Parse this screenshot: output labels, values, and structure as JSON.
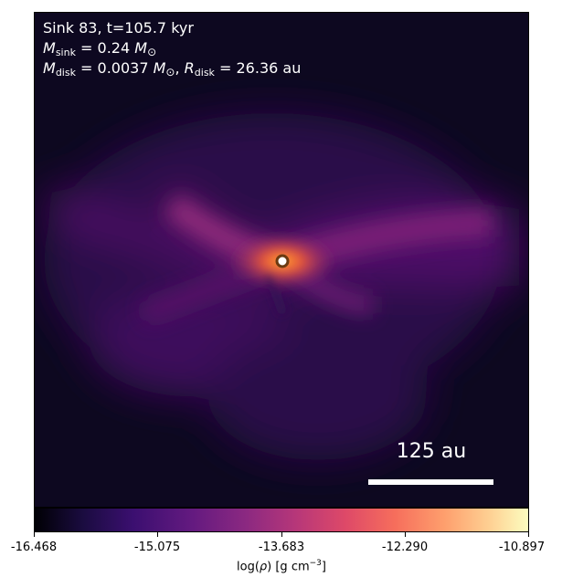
{
  "annotations": {
    "sink_title": "Sink 83, t=105.7 kyr",
    "sink_mass_symbol": "M",
    "sink_mass_sub": "sink",
    "sink_mass_value": " = 0.24 ",
    "sink_mass_unit": "M",
    "sun_symbol": "⊙",
    "disk_mass_symbol": "M",
    "disk_mass_sub": "disk",
    "disk_mass_value": " = 0.0037 ",
    "disk_mass_unit": "M",
    "disk_radius_symbol": "R",
    "disk_radius_sub": "disk",
    "disk_radius_value": " = 26.36 au",
    "separator": ", "
  },
  "scalebar": {
    "label": "125 au"
  },
  "colorbar": {
    "ticks": [
      "-16.468",
      "-15.075",
      "-13.683",
      "-12.290",
      "-10.897"
    ],
    "label_prefix": "log(",
    "label_rho": "ρ",
    "label_mid": ") [g cm",
    "label_exp": "−3",
    "label_suffix": "]",
    "colormap": "inferno"
  },
  "colors": {
    "sink_marker_fill": "#ffffff",
    "sink_marker_edge": "#6b3a12"
  }
}
